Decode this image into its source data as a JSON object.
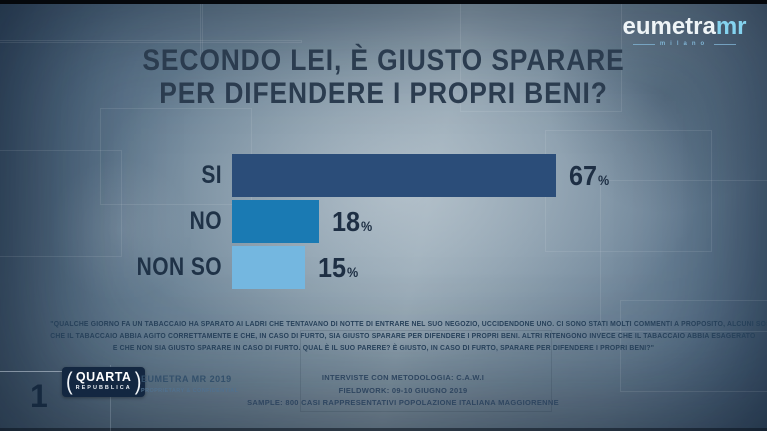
{
  "logo": {
    "brand": "eumetra",
    "suffix": "mr",
    "tagline": "milano",
    "brand_color": "#eef4f7",
    "suffix_color": "#84d3ef"
  },
  "title": {
    "line1": "SECONDO LEI, È GIUSTO SPARARE",
    "line2": "PER DIFENDERE I PROPRI BENI?"
  },
  "chart_data": {
    "type": "bar",
    "orientation": "horizontal",
    "title": "SECONDO LEI, È GIUSTO SPARARE PER DIFENDERE I PROPRI BENI?",
    "categories": [
      "SI",
      "NO",
      "NON SO"
    ],
    "values": [
      67,
      18,
      15
    ],
    "display_values": [
      "67",
      "18",
      "15"
    ],
    "percent_sign": "%",
    "colors": [
      "#2b4d79",
      "#1a7ab3",
      "#74b7e0"
    ],
    "xlim": [
      0,
      100
    ],
    "grid": false,
    "legend": false,
    "value_label_position": "right-of-bar"
  },
  "note": {
    "lines": [
      "\"QUALCHE GIORNO FA UN TABACCAIO HA SPARATO AI LADRI CHE TENTAVANO DI NOTTE DI ENTRARE NEL SUO NEGOZIO, UCCIDENDONE UNO. CI SONO STATI MOLTI COMMENTI A PROPOSITO, ALCUNI SOSTENGONO",
      "CHE IL TABACCAIO ABBIA AGITO CORRETTAMENTE E CHE, IN CASO DI FURTO, SIA GIUSTO SPARARE PER DIFENDERE I PROPRI BENI. ALTRI RITENGONO INVECE CHE IL TABACCAIO ABBIA ESAGERATO",
      "E CHE NON SIA GIUSTO SPARARE IN CASO DI FURTO. QUAL È IL SUO PARERE? È GIUSTO, IN CASO DI FURTO, SPARARE PER DIFENDERE I PROPRI BENI?\""
    ]
  },
  "footer": {
    "page_number": "1",
    "show_logo": {
      "paren_open": "(",
      "line1": "QUARTA",
      "line2": "REPUBBLICA",
      "paren_close": ")"
    },
    "source_line1": "EUMETRA MR 2019",
    "source_line2": "PROPRIETARY & CONFIDENTIAL",
    "methodology": [
      "INTERVISTE CON METODOLOGIA: C.A.W.I",
      "FIELDWORK: 09-10 GIUGNO 2019",
      "SAMPLE: 800 CASI RAPPRESENTATIVI POPOLAZIONE ITALIANA MAGGIORENNE"
    ]
  }
}
